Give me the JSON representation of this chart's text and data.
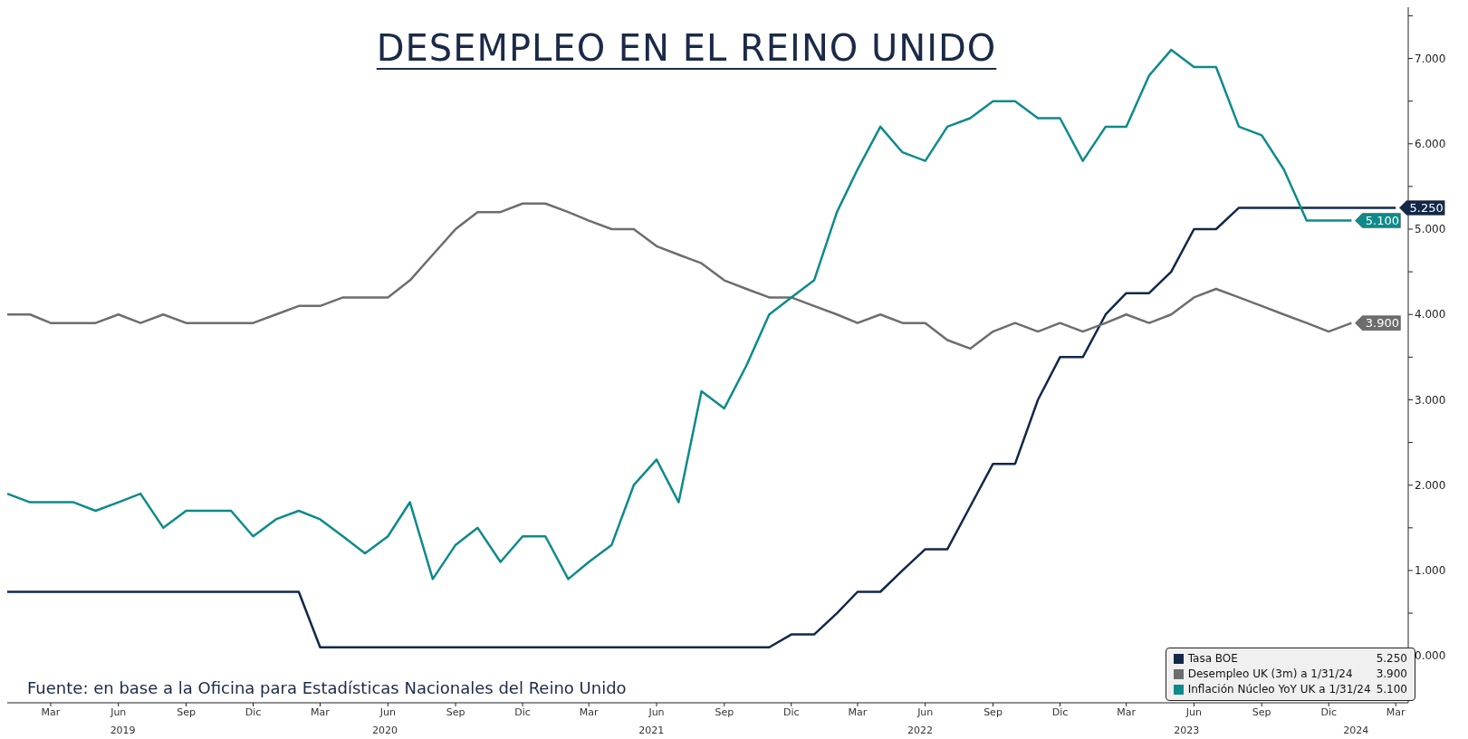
{
  "chart_data": {
    "type": "line",
    "title": "DESEMPLEO EN EL REINO UNIDO",
    "annotations": [
      "Fuente: en base a la Oficina para Estadísticas Nacionales del Reino Unido"
    ],
    "x": [
      "2019-01",
      "2019-02",
      "2019-03",
      "2019-04",
      "2019-05",
      "2019-06",
      "2019-07",
      "2019-08",
      "2019-09",
      "2019-10",
      "2019-11",
      "2019-12",
      "2020-01",
      "2020-02",
      "2020-03",
      "2020-04",
      "2020-05",
      "2020-06",
      "2020-07",
      "2020-08",
      "2020-09",
      "2020-10",
      "2020-11",
      "2020-12",
      "2021-01",
      "2021-02",
      "2021-03",
      "2021-04",
      "2021-05",
      "2021-06",
      "2021-07",
      "2021-08",
      "2021-09",
      "2021-10",
      "2021-11",
      "2021-12",
      "2022-01",
      "2022-02",
      "2022-03",
      "2022-04",
      "2022-05",
      "2022-06",
      "2022-07",
      "2022-08",
      "2022-09",
      "2022-10",
      "2022-11",
      "2022-12",
      "2023-01",
      "2023-02",
      "2023-03",
      "2023-04",
      "2023-05",
      "2023-06",
      "2023-07",
      "2023-08",
      "2023-09",
      "2023-10",
      "2023-11",
      "2023-12",
      "2024-01",
      "2024-02",
      "2024-03"
    ],
    "series": [
      {
        "name": "Tasa BOE",
        "color": "#12284a",
        "values": [
          0.75,
          0.75,
          0.75,
          0.75,
          0.75,
          0.75,
          0.75,
          0.75,
          0.75,
          0.75,
          0.75,
          0.75,
          0.75,
          0.75,
          0.1,
          0.1,
          0.1,
          0.1,
          0.1,
          0.1,
          0.1,
          0.1,
          0.1,
          0.1,
          0.1,
          0.1,
          0.1,
          0.1,
          0.1,
          0.1,
          0.1,
          0.1,
          0.1,
          0.1,
          0.1,
          0.25,
          0.25,
          0.5,
          0.75,
          0.75,
          1.0,
          1.25,
          1.25,
          1.75,
          2.25,
          2.25,
          3.0,
          3.5,
          3.5,
          4.0,
          4.25,
          4.25,
          4.5,
          5.0,
          5.0,
          5.25,
          5.25,
          5.25,
          5.25,
          5.25,
          5.25,
          5.25,
          5.25
        ],
        "value_labels": [
          null,
          null,
          null,
          null,
          null,
          null,
          null,
          null,
          null,
          null,
          null,
          null,
          null,
          null,
          null,
          null,
          null,
          null,
          null,
          null,
          null,
          null,
          null,
          null,
          null,
          null,
          null,
          null,
          null,
          null,
          null,
          null,
          null,
          null,
          null,
          null,
          null,
          null,
          null,
          null,
          null,
          null,
          null,
          null,
          null,
          null,
          null,
          null,
          null,
          null,
          null,
          null,
          null,
          null,
          null,
          null,
          null,
          null,
          null,
          null,
          null,
          null,
          "5.250"
        ]
      },
      {
        "name": "Desempleo UK (3m) a 1/31/24",
        "color": "#6d6d6d",
        "values": [
          4.0,
          4.0,
          3.9,
          3.9,
          3.9,
          4.0,
          3.9,
          4.0,
          3.9,
          3.9,
          3.9,
          3.9,
          4.0,
          4.1,
          4.1,
          4.2,
          4.2,
          4.2,
          4.4,
          4.7,
          5.0,
          5.2,
          5.2,
          5.3,
          5.3,
          5.2,
          5.1,
          5.0,
          5.0,
          4.8,
          4.7,
          4.6,
          4.4,
          4.3,
          4.2,
          4.2,
          4.1,
          4.0,
          3.9,
          4.0,
          3.9,
          3.9,
          3.7,
          3.6,
          3.8,
          3.9,
          3.8,
          3.9,
          3.8,
          3.9,
          4.0,
          3.9,
          4.0,
          4.2,
          4.3,
          4.2,
          4.1,
          4.0,
          3.9,
          3.8,
          3.9,
          null,
          null
        ],
        "value_labels": [
          null,
          null,
          null,
          null,
          null,
          null,
          null,
          null,
          null,
          null,
          null,
          null,
          null,
          null,
          null,
          null,
          null,
          null,
          null,
          null,
          null,
          null,
          null,
          null,
          null,
          null,
          null,
          null,
          null,
          null,
          null,
          null,
          null,
          null,
          null,
          null,
          null,
          null,
          null,
          null,
          null,
          null,
          null,
          null,
          null,
          null,
          null,
          null,
          null,
          null,
          null,
          null,
          null,
          null,
          null,
          null,
          null,
          null,
          null,
          null,
          "3.900",
          null,
          null
        ]
      },
      {
        "name": "Inflación Núcleo YoY UK a 1/31/24",
        "color": "#0e8a8a",
        "values": [
          1.9,
          1.8,
          1.8,
          1.8,
          1.7,
          1.8,
          1.9,
          1.5,
          1.7,
          1.7,
          1.7,
          1.4,
          1.6,
          1.7,
          1.6,
          1.4,
          1.2,
          1.4,
          1.8,
          0.9,
          1.3,
          1.5,
          1.1,
          1.4,
          1.4,
          0.9,
          1.1,
          1.3,
          2.0,
          2.3,
          1.8,
          3.1,
          2.9,
          3.4,
          4.0,
          4.2,
          4.4,
          5.2,
          5.7,
          6.2,
          5.9,
          5.8,
          6.2,
          6.3,
          6.5,
          6.5,
          6.3,
          6.3,
          5.8,
          6.2,
          6.2,
          6.8,
          7.1,
          6.9,
          6.9,
          6.2,
          6.1,
          5.7,
          5.1,
          5.1,
          5.1,
          null,
          null
        ],
        "value_labels": [
          null,
          null,
          null,
          null,
          null,
          null,
          null,
          null,
          null,
          null,
          null,
          null,
          null,
          null,
          null,
          null,
          null,
          null,
          null,
          null,
          null,
          null,
          null,
          null,
          null,
          null,
          null,
          null,
          null,
          null,
          null,
          null,
          null,
          null,
          null,
          null,
          null,
          null,
          null,
          null,
          null,
          null,
          null,
          null,
          null,
          null,
          null,
          null,
          null,
          null,
          null,
          null,
          null,
          null,
          null,
          null,
          null,
          null,
          null,
          null,
          "5.100",
          null,
          null
        ]
      }
    ],
    "xlim": [
      "2019-01",
      "2024-03-18"
    ],
    "xticks": [
      {
        "value": "2019-03",
        "label": "Mar"
      },
      {
        "value": "2019-06",
        "label": "Jun"
      },
      {
        "value": "2019-09",
        "label": "Sep"
      },
      {
        "value": "2019-12",
        "label": "Dic"
      },
      {
        "value": "2020-03",
        "label": "Mar"
      },
      {
        "value": "2020-06",
        "label": "Jun"
      },
      {
        "value": "2020-09",
        "label": "Sep"
      },
      {
        "value": "2020-12",
        "label": "Dic"
      },
      {
        "value": "2021-03",
        "label": "Mar"
      },
      {
        "value": "2021-06",
        "label": "Jun"
      },
      {
        "value": "2021-09",
        "label": "Sep"
      },
      {
        "value": "2021-12",
        "label": "Dic"
      },
      {
        "value": "2022-03",
        "label": "Mar"
      },
      {
        "value": "2022-06",
        "label": "Jun"
      },
      {
        "value": "2022-09",
        "label": "Sep"
      },
      {
        "value": "2022-12",
        "label": "Dic"
      },
      {
        "value": "2023-03",
        "label": "Mar"
      },
      {
        "value": "2023-06",
        "label": "Jun"
      },
      {
        "value": "2023-09",
        "label": "Sep"
      },
      {
        "value": "2023-12",
        "label": "Dic"
      },
      {
        "value": "2024-03",
        "label": "Mar"
      }
    ],
    "x2lim": [
      "2019-01",
      "2024-03-18"
    ],
    "x2ticks": [
      {
        "value": "2019-06-07",
        "label": "2019"
      },
      {
        "value": "2020-05-28",
        "label": "2020"
      },
      {
        "value": "2021-05-25",
        "label": "2021"
      },
      {
        "value": "2022-05-25",
        "label": "2022"
      },
      {
        "value": "2023-05-22",
        "label": "2023"
      },
      {
        "value": "2024-01-07",
        "label": "2024"
      }
    ],
    "ylim": [
      -0.55,
      7.6
    ],
    "yticks": [
      {
        "value": 0,
        "label": "0.000"
      },
      {
        "value": 0.5,
        "label": null
      },
      {
        "value": 1,
        "label": "1.000"
      },
      {
        "value": 1.5,
        "label": null
      },
      {
        "value": 2,
        "label": "2.000"
      },
      {
        "value": 2.5,
        "label": null
      },
      {
        "value": 3,
        "label": "3.000"
      },
      {
        "value": 3.5,
        "label": null
      },
      {
        "value": 4,
        "label": "4.000"
      },
      {
        "value": 4.5,
        "label": null
      },
      {
        "value": 5,
        "label": "5.000"
      },
      {
        "value": 5.5,
        "label": null
      },
      {
        "value": 6,
        "label": "6.000"
      },
      {
        "value": 6.5,
        "label": null
      },
      {
        "value": 7,
        "label": "7.000"
      },
      {
        "value": 7.5,
        "label": null
      }
    ],
    "grid": false,
    "legend": "bottom right",
    "marker": "none",
    "line_style": "solid"
  }
}
